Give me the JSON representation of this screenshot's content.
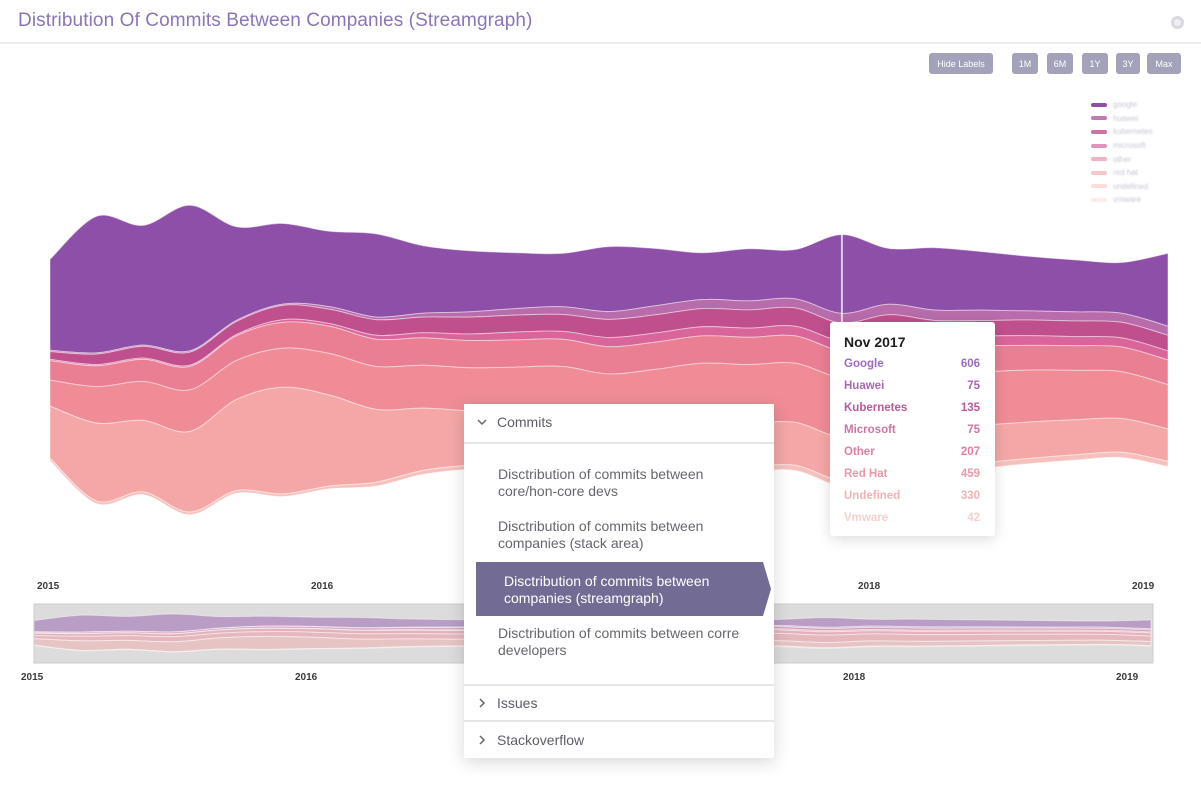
{
  "header": {
    "title": "Distribution Of Commits Between Companies (Streamgraph)"
  },
  "toolbar": {
    "hide_labels": "Hide Labels",
    "ranges": [
      "1M",
      "6M",
      "1Y",
      "3Y",
      "Max"
    ]
  },
  "colors": {
    "google": "#8e4fa8",
    "huawei": "#b86cab",
    "kubernetes": "#c04f8d",
    "microsoft": "#d9659a",
    "other": "#ea7f94",
    "red_hat": "#f08c96",
    "undefined": "#f4a7a6",
    "vmware": "#f6c1bd",
    "accent": "#726b94"
  },
  "chart_data": {
    "type": "area",
    "layout": "streamgraph",
    "title": "Distribution Of Commits Between Companies (Streamgraph)",
    "x_ticks": [
      "2015",
      "2016",
      "2018",
      "2019"
    ],
    "legend": {
      "placement": "top-right",
      "entries": [
        "google",
        "huawei",
        "kubernetes",
        "microsoft",
        "other",
        "red hat",
        "undefined",
        "vmware"
      ]
    },
    "x": [
      "2015-01",
      "2015-03",
      "2015-05",
      "2015-07",
      "2015-09",
      "2015-11",
      "2016-01",
      "2016-03",
      "2016-05",
      "2016-07",
      "2016-09",
      "2016-11",
      "2017-01",
      "2017-03",
      "2017-05",
      "2017-07",
      "2017-09",
      "2017-11",
      "2018-01",
      "2018-03",
      "2018-05",
      "2018-07",
      "2018-09",
      "2018-11",
      "2019-01"
    ],
    "series": [
      {
        "name": "google",
        "values": [
          700,
          1050,
          920,
          1120,
          720,
          620,
          580,
          640,
          520,
          470,
          430,
          410,
          500,
          440,
          360,
          400,
          380,
          606,
          430,
          480,
          450,
          420,
          400,
          390,
          560
        ]
      },
      {
        "name": "huawei",
        "values": [
          10,
          10,
          10,
          10,
          10,
          10,
          20,
          20,
          30,
          40,
          50,
          60,
          60,
          70,
          70,
          70,
          70,
          75,
          80,
          80,
          80,
          70,
          70,
          70,
          70
        ]
      },
      {
        "name": "kubernetes",
        "values": [
          60,
          80,
          90,
          100,
          100,
          110,
          110,
          120,
          120,
          130,
          130,
          130,
          140,
          140,
          140,
          140,
          140,
          135,
          130,
          130,
          120,
          120,
          120,
          120,
          120
        ]
      },
      {
        "name": "microsoft",
        "values": [
          10,
          10,
          10,
          10,
          10,
          20,
          20,
          30,
          40,
          50,
          60,
          60,
          70,
          70,
          70,
          70,
          75,
          75,
          75,
          75,
          75,
          75,
          70,
          70,
          70
        ]
      },
      {
        "name": "other",
        "values": [
          150,
          160,
          170,
          180,
          190,
          200,
          210,
          210,
          210,
          210,
          210,
          210,
          210,
          210,
          210,
          210,
          210,
          207,
          200,
          200,
          200,
          190,
          190,
          190,
          190
        ]
      },
      {
        "name": "red hat",
        "values": [
          200,
          280,
          300,
          320,
          300,
          300,
          320,
          330,
          330,
          330,
          340,
          360,
          380,
          420,
          440,
          450,
          455,
          459,
          440,
          420,
          410,
          400,
          380,
          360,
          340
        ]
      },
      {
        "name": "undefined",
        "values": [
          400,
          600,
          550,
          620,
          700,
          820,
          700,
          560,
          480,
          420,
          400,
          380,
          350,
          330,
          320,
          330,
          330,
          330,
          320,
          300,
          290,
          280,
          270,
          260,
          250
        ]
      },
      {
        "name": "vmware",
        "values": [
          20,
          20,
          20,
          20,
          20,
          20,
          20,
          30,
          30,
          30,
          30,
          30,
          35,
          35,
          40,
          40,
          40,
          42,
          42,
          42,
          42,
          40,
          40,
          40,
          40
        ]
      }
    ]
  },
  "tooltip": {
    "title": "Nov 2017",
    "rows": [
      {
        "name": "Google",
        "value": "606",
        "color": "#9c6bc0"
      },
      {
        "name": "Huawei",
        "value": "75",
        "color": "#a868b4"
      },
      {
        "name": "Kubernetes",
        "value": "135",
        "color": "#b95b9a"
      },
      {
        "name": "Microsoft",
        "value": "75",
        "color": "#d075a3"
      },
      {
        "name": "Other",
        "value": "207",
        "color": "#e27e9d"
      },
      {
        "name": "Red Hat",
        "value": "459",
        "color": "#ec98a6"
      },
      {
        "name": "Undefined",
        "value": "330",
        "color": "#f1b3b6"
      },
      {
        "name": "Vmware",
        "value": "42",
        "color": "#f5cfcf"
      }
    ]
  },
  "menu": {
    "sections": [
      {
        "label": "Commits",
        "expanded": true,
        "items": [
          {
            "label": "Disctribution of commits between core/hon-core devs",
            "active": false
          },
          {
            "label": "Disctribution of commits between companies (stack area)",
            "active": false
          },
          {
            "label": "Disctribution of commits between companies (streamgraph)",
            "active": true
          },
          {
            "label": "Disctribution of commits between corre developers",
            "active": false
          }
        ]
      },
      {
        "label": "Issues",
        "expanded": false
      },
      {
        "label": "Stackoverflow",
        "expanded": false
      }
    ]
  }
}
